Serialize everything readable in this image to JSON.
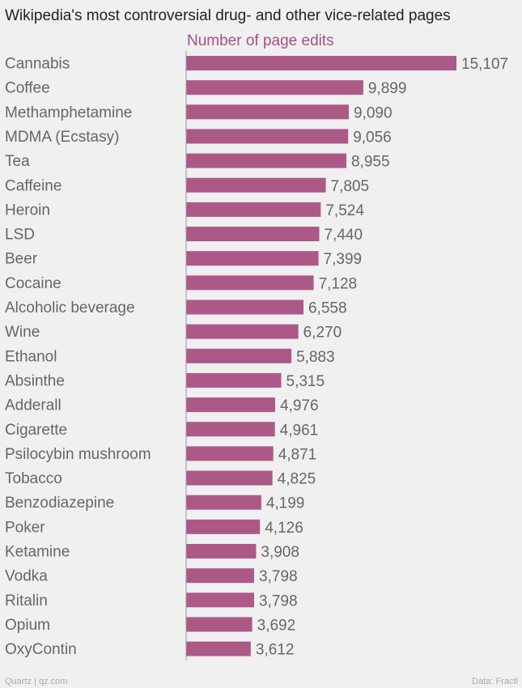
{
  "footer": {
    "source_left": "Quartz | qz.com",
    "source_right": "Data: Fractl"
  },
  "colors": {
    "bar": "#ad5988",
    "series_label": "#a84f86",
    "background": "#f0f0f0"
  },
  "chart_data": {
    "type": "bar",
    "orientation": "horizontal",
    "title": "Wikipedia's most controversial drug- and other vice-related pages",
    "series": [
      {
        "name": "Number of page edits",
        "values": [
          15107,
          9899,
          9090,
          9056,
          8955,
          7805,
          7524,
          7440,
          7399,
          7128,
          6558,
          6270,
          5883,
          5315,
          4976,
          4961,
          4871,
          4825,
          4199,
          4126,
          3908,
          3798,
          3798,
          3692,
          3612
        ],
        "value_labels": [
          "15,107",
          "9,899",
          "9,090",
          "9,056",
          "8,955",
          "7,805",
          "7,524",
          "7,440",
          "7,399",
          "7,128",
          "6,558",
          "6,270",
          "5,883",
          "5,315",
          "4,976",
          "4,961",
          "4,871",
          "4,825",
          "4,199",
          "4,126",
          "3,908",
          "3,798",
          "3,798",
          "3,692",
          "3,612"
        ]
      }
    ],
    "categories": [
      "Cannabis",
      "Coffee",
      "Methamphetamine",
      "MDMA (Ecstasy)",
      "Tea",
      "Caffeine",
      "Heroin",
      "LSD",
      "Beer",
      "Cocaine",
      "Alcoholic beverage",
      "Wine",
      "Ethanol",
      "Absinthe",
      "Adderall",
      "Cigarette",
      "Psilocybin mushroom",
      "Tobacco",
      "Benzodiazepine",
      "Poker",
      "Ketamine",
      "Vodka",
      "Ritalin",
      "Opium",
      "OxyContin"
    ],
    "xlim": [
      0,
      15107
    ],
    "grid": false,
    "legend": "none"
  }
}
